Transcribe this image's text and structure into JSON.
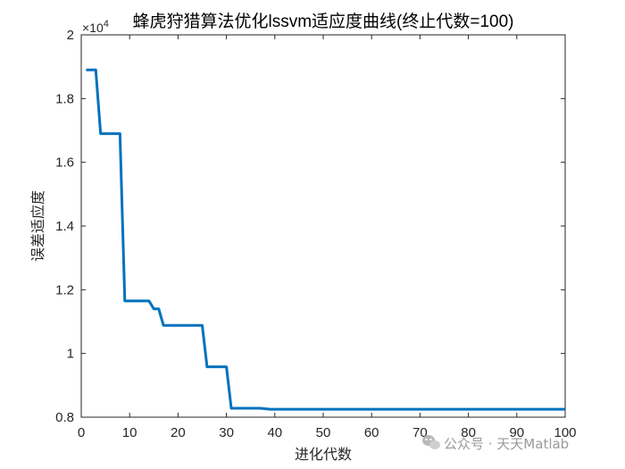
{
  "chart_data": {
    "type": "line",
    "title": "蜂虎狩猎算法优化lssvm适应度曲线(终止代数=100)",
    "xlabel": "进化代数",
    "ylabel": "误差适应度",
    "y_exponent_label": "×10",
    "xlim": [
      0,
      100
    ],
    "ylim": [
      0.8,
      2.0
    ],
    "y_scale_exponent": 4,
    "x_ticks": [
      0,
      10,
      20,
      30,
      40,
      50,
      60,
      70,
      80,
      90,
      100
    ],
    "x_tick_labels": [
      "0",
      "10",
      "20",
      "30",
      "40",
      "50",
      "60",
      "70",
      "80",
      "90",
      "100"
    ],
    "y_ticks": [
      0.8,
      1.0,
      1.2,
      1.4,
      1.6,
      1.8,
      2.0
    ],
    "y_tick_labels": [
      "0.8",
      "1",
      "1.2",
      "1.4",
      "1.6",
      "1.8",
      "2"
    ],
    "grid": false,
    "line_color": "#0072BD",
    "series": [
      {
        "x": [
          1,
          3,
          4,
          8,
          9,
          14,
          15,
          16,
          17,
          25,
          26,
          30,
          31,
          37,
          39,
          100
        ],
        "y": [
          1.89,
          1.89,
          1.69,
          1.69,
          1.165,
          1.165,
          1.14,
          1.14,
          1.088,
          1.088,
          0.958,
          0.958,
          0.828,
          0.828,
          0.825,
          0.825
        ]
      }
    ]
  },
  "watermark": {
    "text": "公众号 · 天天Matlab",
    "icon": "wechat-icon"
  }
}
